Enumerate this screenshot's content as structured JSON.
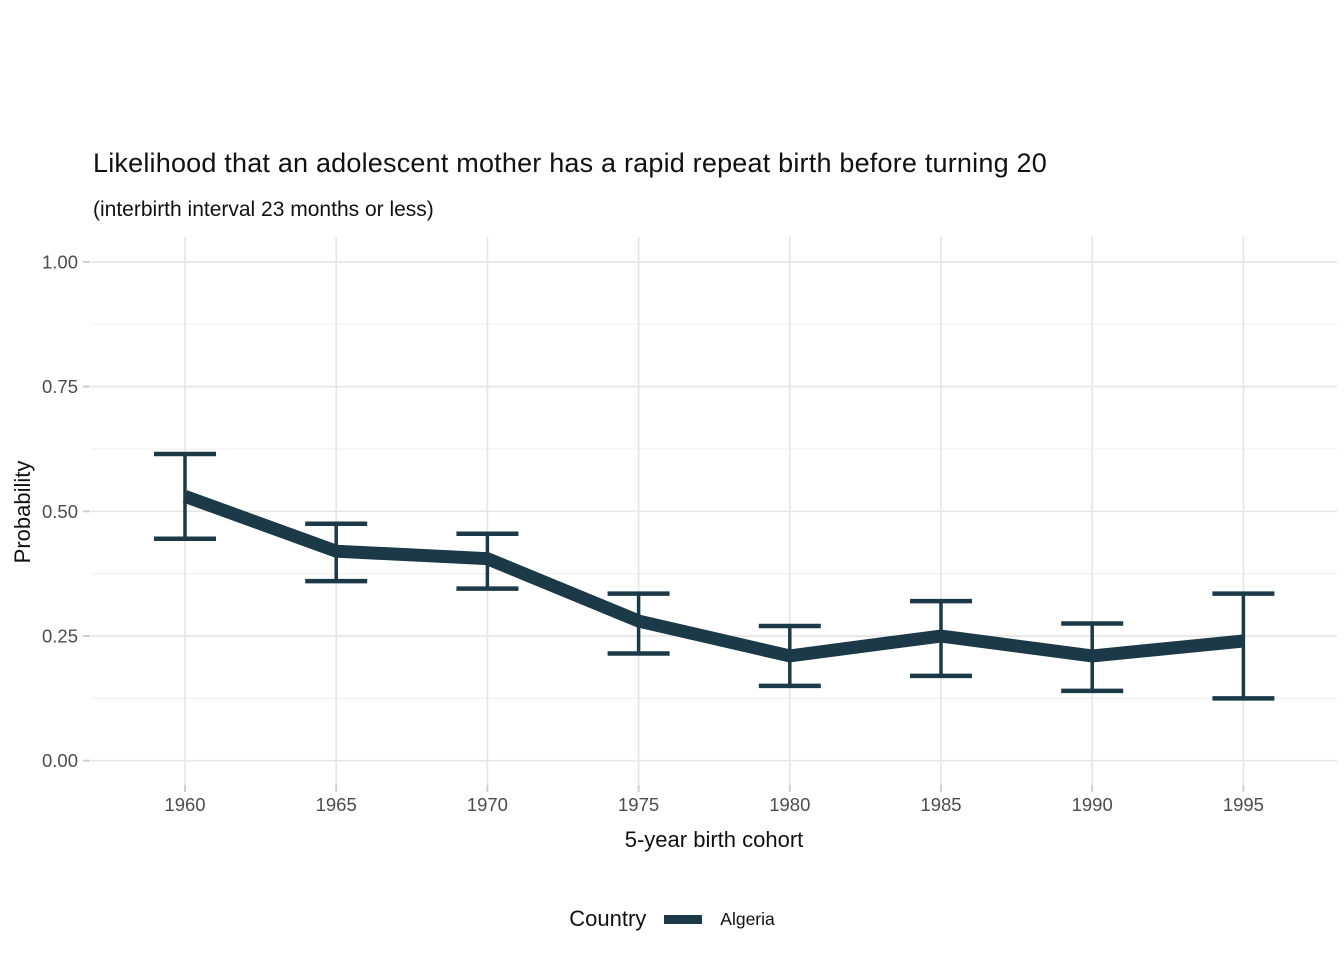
{
  "chart_data": {
    "type": "line",
    "title": "Likelihood that an adolescent mother has a rapid repeat birth before turning 20",
    "subtitle": "(interbirth interval 23 months or less)",
    "xlabel": "5-year birth cohort",
    "ylabel": "Probability",
    "legend": {
      "title": "Country",
      "position": "bottom",
      "entries": [
        {
          "label": "Algeria",
          "color": "#1b3947"
        }
      ]
    },
    "categories": [
      "1960",
      "1965",
      "1970",
      "1975",
      "1980",
      "1985",
      "1990",
      "1995"
    ],
    "series": [
      {
        "name": "Algeria",
        "color": "#1b3947",
        "values": [
          0.53,
          0.42,
          0.405,
          0.28,
          0.21,
          0.25,
          0.21,
          0.24
        ],
        "ci_lower": [
          0.445,
          0.36,
          0.345,
          0.215,
          0.15,
          0.17,
          0.14,
          0.125
        ],
        "ci_upper": [
          0.615,
          0.475,
          0.455,
          0.335,
          0.27,
          0.32,
          0.275,
          0.335
        ]
      }
    ],
    "ylim": [
      0,
      1
    ],
    "yticks": [
      "0.00",
      "0.25",
      "0.50",
      "0.75",
      "1.00"
    ],
    "ytick_values": [
      0,
      0.25,
      0.5,
      0.75,
      1.0
    ],
    "minor_ytick_values": [
      0.125,
      0.375,
      0.625,
      0.875
    ],
    "grid": {
      "on": true,
      "major_color": "#e6e6e6",
      "minor_color": "#f1f1f1"
    },
    "axis": {
      "tick_color": "#cfcfcf",
      "tick_label_color": "#4d4d4d"
    }
  }
}
